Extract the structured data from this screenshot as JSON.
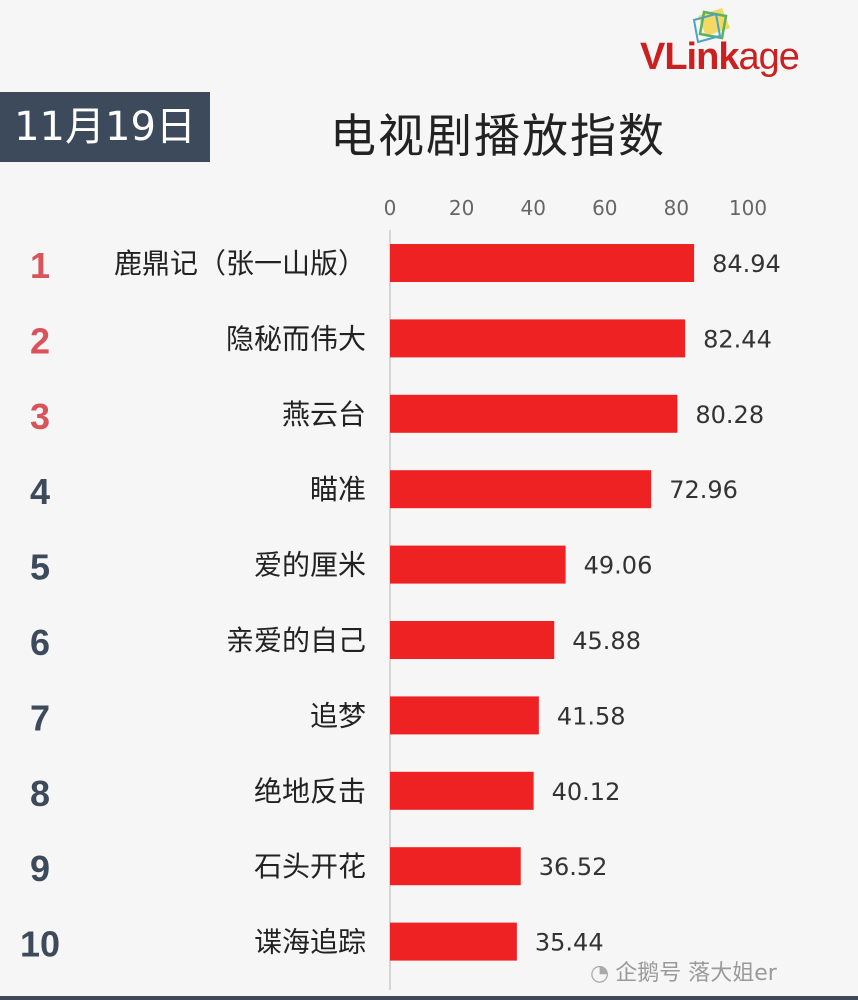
{
  "header": {
    "date": "11月19日",
    "title": "电视剧播放指数",
    "logo_text_bold": "VLink",
    "logo_text_light": "age"
  },
  "watermark": {
    "icon": "penguin-icon",
    "text": "企鹅号 落大姐er"
  },
  "colors": {
    "bar": "#ee2222",
    "top_rank": "#d9535b",
    "other_rank": "#3d4a5c",
    "badge_bg": "#3d4a5c"
  },
  "chart_data": {
    "type": "bar",
    "orientation": "horizontal",
    "title": "电视剧播放指数",
    "xlim": [
      0,
      100
    ],
    "xticks": [
      "0",
      "20",
      "40",
      "60",
      "80",
      "100"
    ],
    "xtick_values": [
      0,
      20,
      40,
      60,
      80,
      100
    ],
    "ranks": [
      "1",
      "2",
      "3",
      "4",
      "5",
      "6",
      "7",
      "8",
      "9",
      "10"
    ],
    "categories": [
      "鹿鼎记（张一山版）",
      "隐秘而伟大",
      "燕云台",
      "瞄准",
      "爱的厘米",
      "亲爱的自己",
      "追梦",
      "绝地反击",
      "石头开花",
      "谍海追踪"
    ],
    "values": [
      84.94,
      82.44,
      80.28,
      72.96,
      49.06,
      45.88,
      41.58,
      40.12,
      36.52,
      35.44
    ],
    "value_labels": [
      "84.94",
      "82.44",
      "80.28",
      "72.96",
      "49.06",
      "45.88",
      "41.58",
      "40.12",
      "36.52",
      "35.44"
    ],
    "grid": false
  }
}
